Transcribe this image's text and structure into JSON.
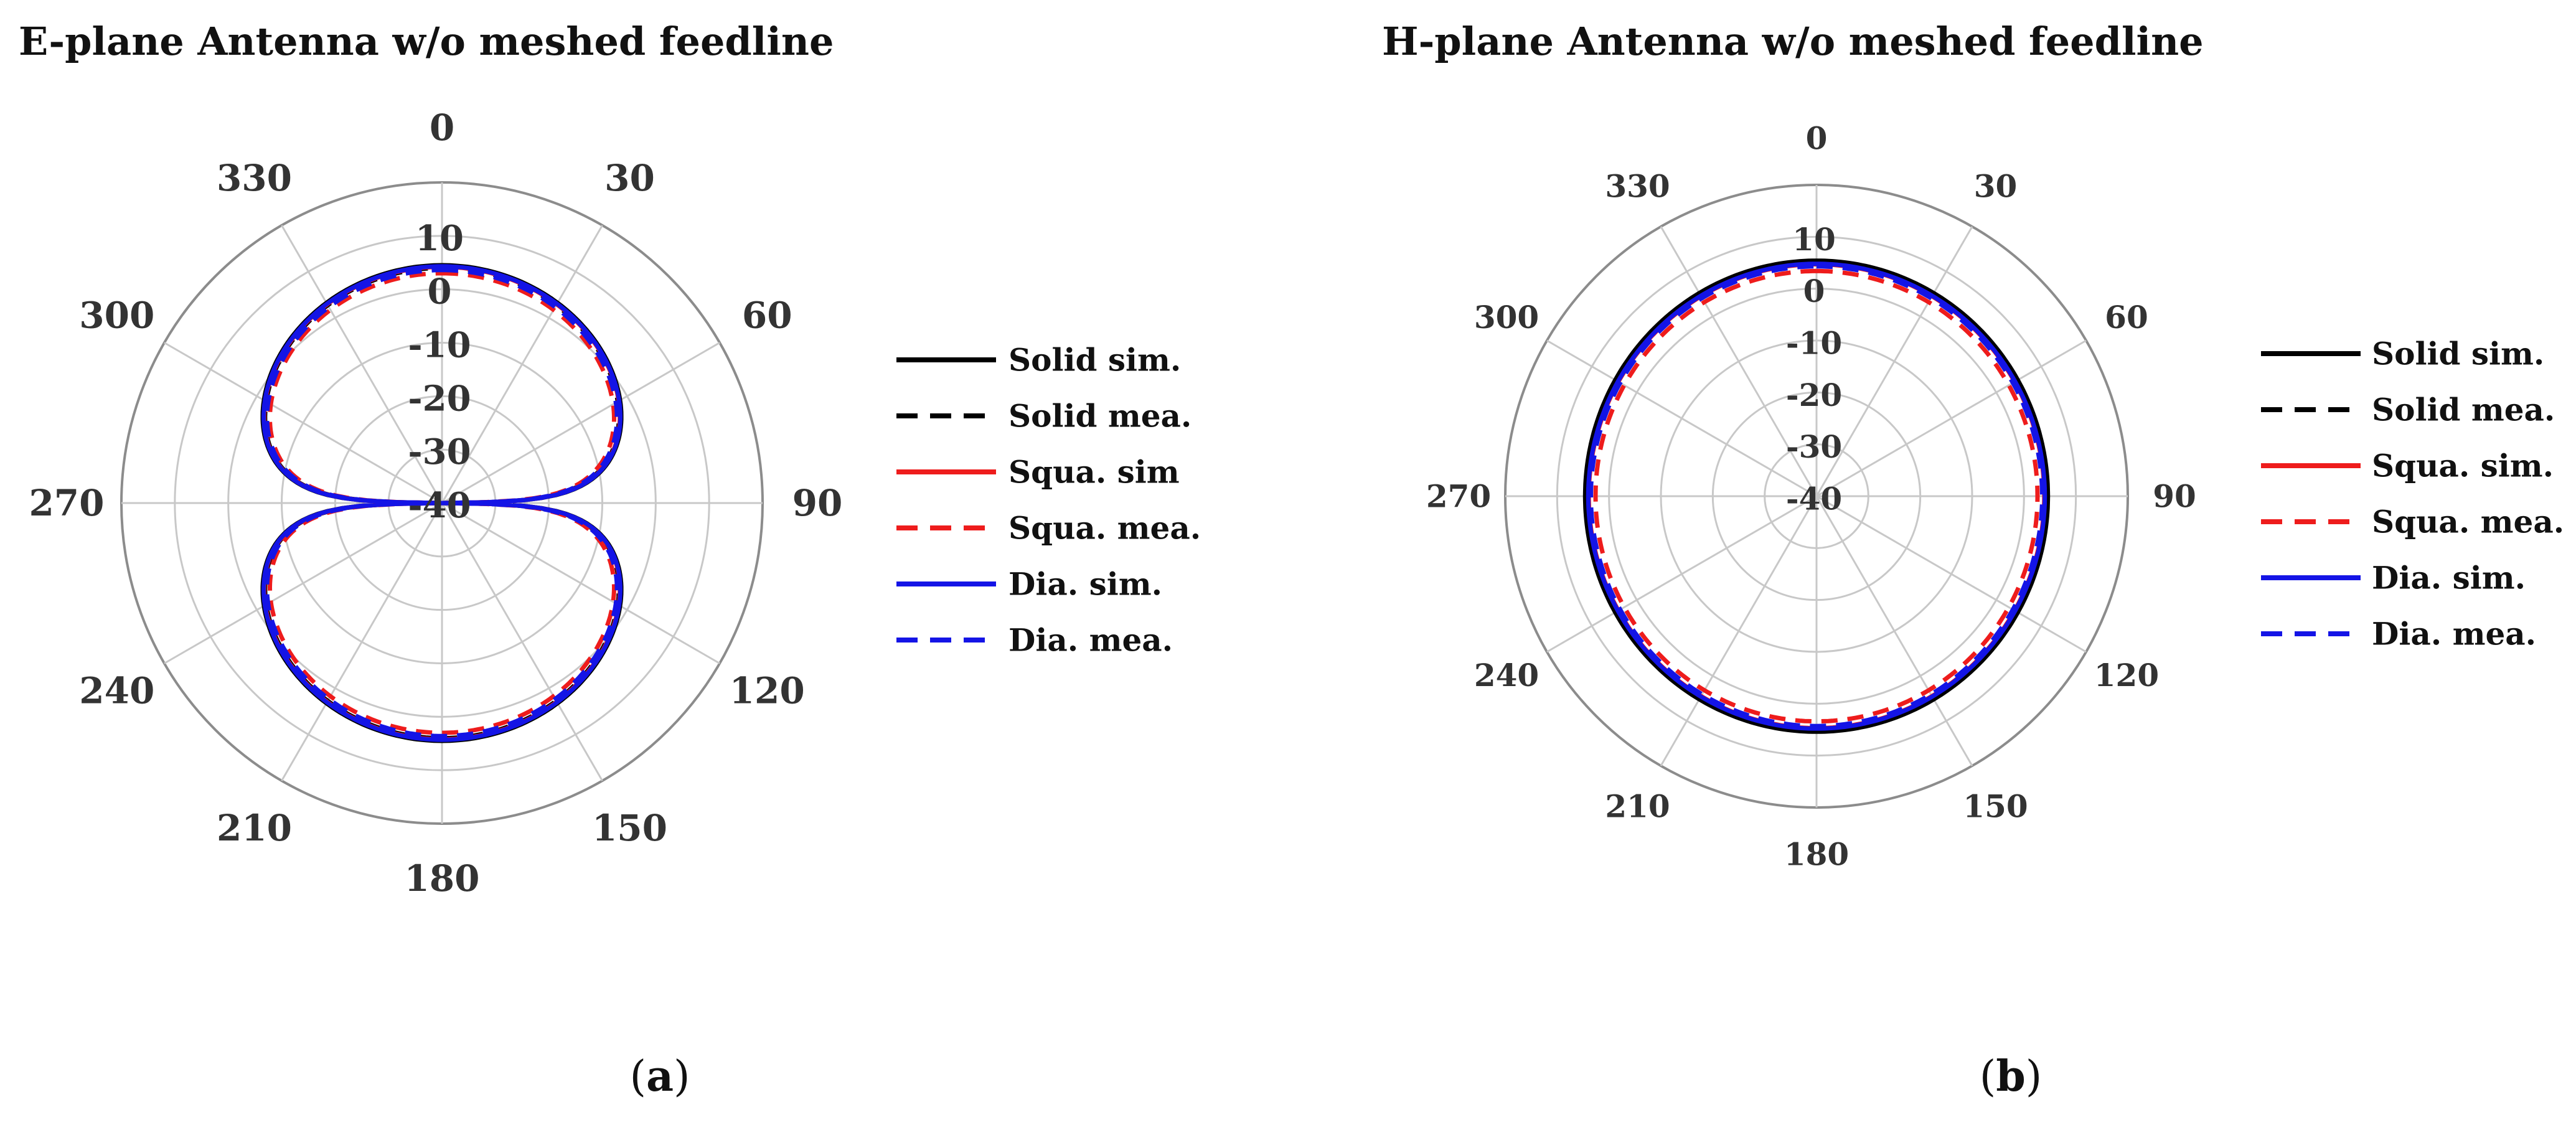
{
  "colors": {
    "solid": "#000000",
    "square": "#ee1c1c",
    "diamond": "#1414e6",
    "grid": "#c8c8c8",
    "outer_ring": "#8c8c8c"
  },
  "legend": [
    {
      "key": "solid_sim",
      "color": "#000000",
      "dashed": false
    },
    {
      "key": "solid_mea",
      "color": "#000000",
      "dashed": true
    },
    {
      "key": "squa_sim",
      "color": "#ee1c1c",
      "dashed": false
    },
    {
      "key": "squa_mea",
      "color": "#ee1c1c",
      "dashed": true
    },
    {
      "key": "dia_sim",
      "color": "#1414e6",
      "dashed": false
    },
    {
      "key": "dia_mea",
      "color": "#1414e6",
      "dashed": true
    }
  ],
  "chart_data": [
    {
      "type": "polar",
      "title": "E-plane Antenna w/o meshed feedline",
      "caption_open": "(",
      "caption_letter": "a",
      "caption_close": ")",
      "angle_ticks": [
        "0",
        "30",
        "60",
        "90",
        "120",
        "150",
        "180",
        "210",
        "240",
        "270",
        "300",
        "330"
      ],
      "radial_ticks": [
        "10",
        "0",
        "-10",
        "-20",
        "-30",
        "-40"
      ],
      "rlim": [
        -40,
        20
      ],
      "angle_direction": "clockwise",
      "zero_at": "top",
      "legend_labels": {
        "solid_sim": "Solid sim.",
        "solid_mea": "Solid mea.",
        "squa_sim": "Squa. sim",
        "squa_mea": "Squa. mea.",
        "dia_sim": "Dia. sim.",
        "dia_mea": "Dia. mea."
      },
      "pattern": {
        "model": "abs(cos(theta))",
        "floor_db": -40
      },
      "series": [
        {
          "key": "solid_sim",
          "name": "Solid sim.",
          "peak_db": 4.5,
          "side": "both"
        },
        {
          "key": "solid_mea",
          "name": "Solid mea.",
          "peak_db": 4.0,
          "side": "both"
        },
        {
          "key": "squa_sim",
          "name": "Squa. sim",
          "peak_db": 4.2,
          "side": "both"
        },
        {
          "key": "squa_mea",
          "name": "Squa. mea.",
          "peak_db": 3.0,
          "side": "both"
        },
        {
          "key": "dia_sim",
          "name": "Dia. sim.",
          "peak_db": 4.3,
          "side": "both"
        },
        {
          "key": "dia_mea",
          "name": "Dia. mea.",
          "peak_db": 3.6,
          "side": "both"
        }
      ]
    },
    {
      "type": "polar",
      "title": "H-plane Antenna w/o meshed feedline",
      "caption_open": "(",
      "caption_letter": "b",
      "caption_close": ")",
      "angle_ticks": [
        "0",
        "30",
        "60",
        "90",
        "120",
        "150",
        "180",
        "210",
        "240",
        "270",
        "300",
        "330"
      ],
      "radial_ticks": [
        "10",
        "0",
        "-10",
        "-20",
        "-30",
        "-40"
      ],
      "rlim": [
        -40,
        20
      ],
      "angle_direction": "clockwise",
      "zero_at": "top",
      "legend_labels": {
        "solid_sim": "Solid sim.",
        "solid_mea": "Solid mea.",
        "squa_sim": "Squa. sim.",
        "squa_mea": "Squa. mea.",
        "dia_sim": "Dia. sim.",
        "dia_mea": "Dia. mea."
      },
      "pattern": {
        "model": "omnidirectional"
      },
      "series": [
        {
          "key": "solid_sim",
          "name": "Solid sim.",
          "level_db": 5.0
        },
        {
          "key": "solid_mea",
          "name": "Solid mea.",
          "level_db": 4.6
        },
        {
          "key": "squa_sim",
          "name": "Squa. sim.",
          "level_db": 4.3
        },
        {
          "key": "squa_mea",
          "name": "Squa. mea.",
          "level_db": 3.0
        },
        {
          "key": "dia_sim",
          "name": "Dia. sim.",
          "level_db": 4.4
        },
        {
          "key": "dia_mea",
          "name": "Dia. mea.",
          "level_db": 3.9
        }
      ]
    }
  ]
}
